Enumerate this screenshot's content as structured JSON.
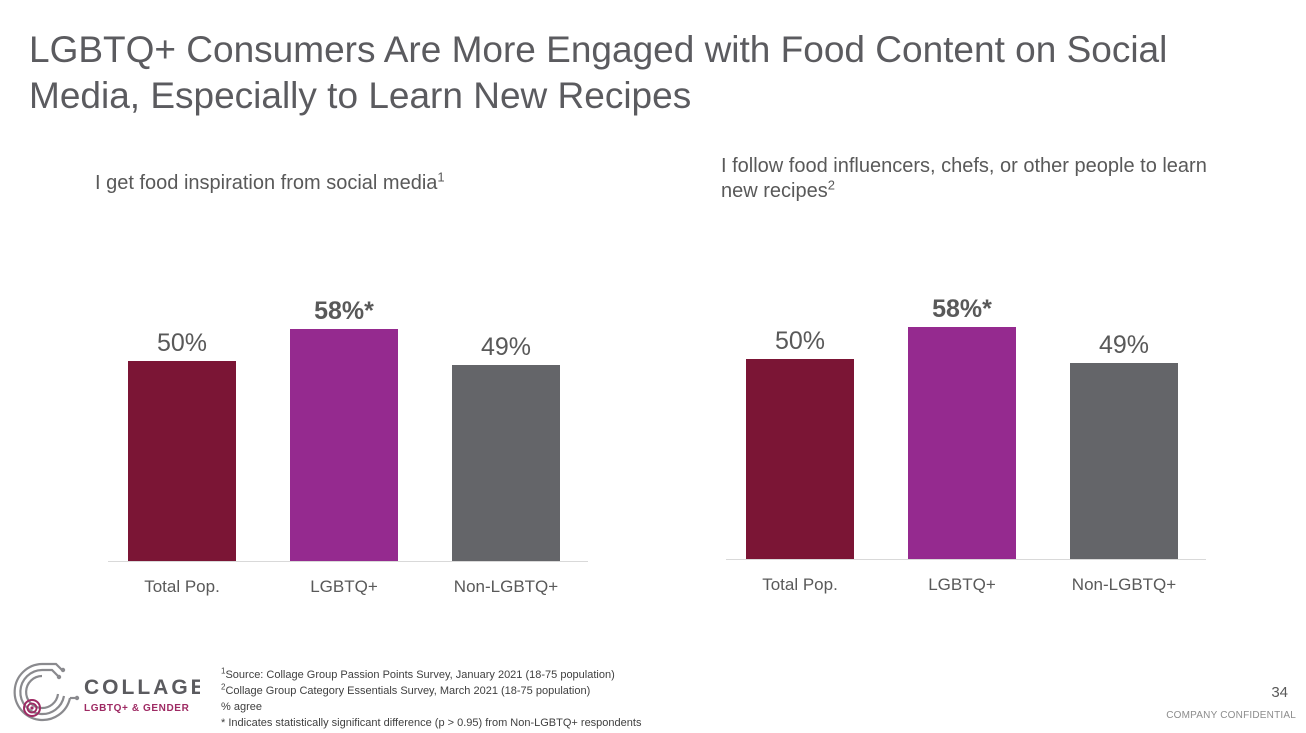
{
  "slide": {
    "title": "LGBTQ+ Consumers Are More Engaged with Food Content on Social Media, Especially to Learn New Recipes",
    "page_number": "34",
    "confidential": "COMPANY CONFIDENTIAL"
  },
  "chart_data": [
    {
      "type": "bar",
      "title": "I get food inspiration from social media",
      "title_footnote": "1",
      "categories": [
        "Total Pop.",
        "LGBTQ+",
        "Non-LGBTQ+"
      ],
      "values": [
        50,
        58,
        49
      ],
      "value_labels": [
        "50%",
        "58%*",
        "49%"
      ],
      "highlighted": [
        false,
        true,
        false
      ],
      "colors": [
        "#7b1535",
        "#952a8f",
        "#646569"
      ],
      "ylim": [
        0,
        60
      ],
      "grid": false,
      "legend": "none"
    },
    {
      "type": "bar",
      "title": "I follow food influencers, chefs, or other people to learn new recipes",
      "title_footnote": "2",
      "categories": [
        "Total Pop.",
        "LGBTQ+",
        "Non-LGBTQ+"
      ],
      "values": [
        50,
        58,
        49
      ],
      "value_labels": [
        "50%",
        "58%*",
        "49%"
      ],
      "highlighted": [
        false,
        true,
        false
      ],
      "colors": [
        "#7b1535",
        "#952a8f",
        "#646569"
      ],
      "ylim": [
        0,
        60
      ],
      "grid": false,
      "legend": "none"
    }
  ],
  "footnotes": [
    {
      "mark": "1",
      "text": "Source: Collage Group Passion Points Survey, January 2021 (18-75 population)"
    },
    {
      "mark": "2",
      "text": "Collage Group Category Essentials Survey, March 2021 (18-75 population)"
    },
    {
      "mark": "",
      "text": "% agree"
    },
    {
      "mark": "",
      "text": "* Indicates statistically significant difference (p > 0.95) from Non-LGBTQ+ respondents"
    }
  ],
  "logo": {
    "name": "COLLAGE",
    "tagline": "LGBTQ+ & GENDER",
    "icon": "circuit-circle-logo-icon",
    "primary_color": "#5b5b5f",
    "accent_color": "#9e2a63"
  }
}
